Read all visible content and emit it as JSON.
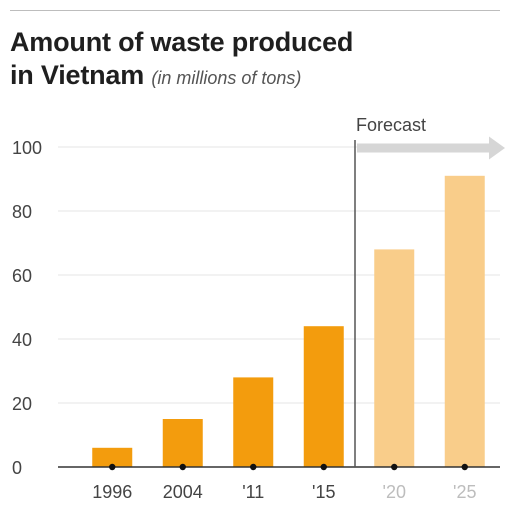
{
  "chart_data": {
    "type": "bar",
    "title": "Amount of waste produced in Vietnam",
    "title_line1": "Amount of waste produced",
    "title_line2": "in Vietnam",
    "subtitle": "(in millions of tons)",
    "categories": [
      "1996",
      "2004",
      "'11",
      "'15",
      "'20",
      "'25"
    ],
    "values": [
      6,
      15,
      28,
      44,
      68,
      91
    ],
    "forecast_flags": [
      false,
      false,
      false,
      false,
      true,
      true
    ],
    "forecast_label": "Forecast",
    "ylim": [
      0,
      100
    ],
    "yticks": [
      "0",
      "20",
      "40",
      "60",
      "80",
      "100"
    ],
    "grid": true,
    "colors": {
      "actual": "#f39c0d",
      "forecast": "#f9cd8a",
      "grid": "#e6e6e6",
      "axis": "#333333",
      "divider": "#555555",
      "arrow": "#d6d6d6"
    }
  }
}
